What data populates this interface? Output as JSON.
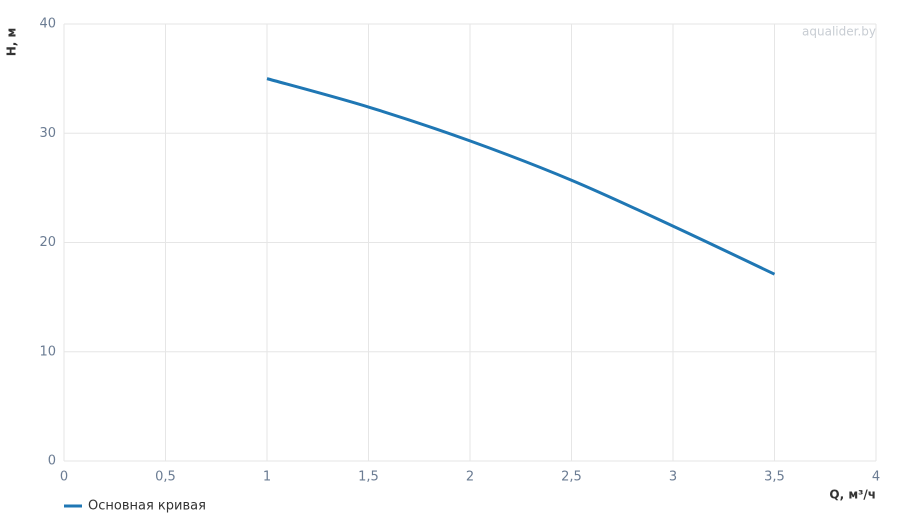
{
  "chart_data": {
    "type": "line",
    "x_label": "Q, м³/ч",
    "y_label": "H, м",
    "watermark": "aqualider.by",
    "x": [
      1,
      1.5,
      2,
      2.5,
      3,
      3.5
    ],
    "series": [
      {
        "name": "Основная кривая",
        "color": "#1f77b4",
        "values": [
          35,
          32.4,
          29.3,
          25.7,
          21.5,
          17.1
        ]
      }
    ],
    "xlim": [
      0,
      4
    ],
    "xticks": [
      0,
      {
        "value": 0.5,
        "label": "0,5"
      },
      1,
      {
        "value": 1.5,
        "label": "1,5"
      },
      2,
      {
        "value": 2.5,
        "label": "2,5"
      },
      3,
      {
        "value": 3.5,
        "label": "3,5"
      },
      4
    ],
    "ylim": [
      0,
      40
    ],
    "yticks": [
      0,
      10,
      20,
      30,
      40
    ],
    "grid": true
  }
}
